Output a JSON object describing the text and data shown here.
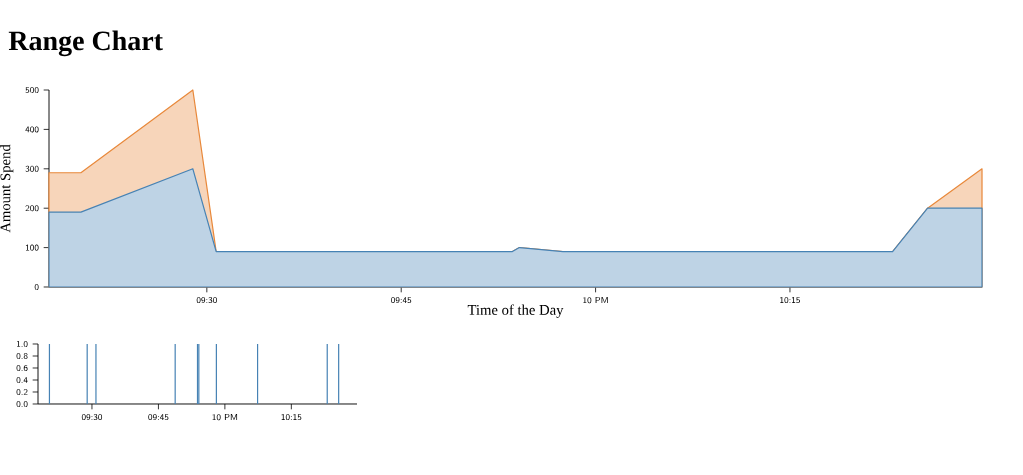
{
  "chart_data": [
    {
      "type": "area",
      "title": "Range Chart",
      "xlabel": "Time of the Day",
      "ylabel": "Amount Spend",
      "x": [
        9.297,
        9.338,
        9.482,
        9.512,
        9.893,
        9.902,
        9.913,
        9.958,
        10.382,
        10.427,
        10.497
      ],
      "series": [
        {
          "color": "#e8883a",
          "values": [
            290,
            290,
            500,
            90,
            90,
            100,
            98,
            90,
            90,
            200,
            300
          ]
        },
        {
          "color": "#4682b4",
          "values": [
            190,
            190,
            300,
            90,
            90,
            100,
            98,
            90,
            90,
            200,
            200
          ]
        }
      ],
      "xlim": [
        9.297,
        10.497
      ],
      "ylim": [
        0,
        500
      ],
      "xticks": [
        {
          "value": 9.5,
          "label": "09:30"
        },
        {
          "value": 9.75,
          "label": "09:45"
        },
        {
          "value": 10,
          "label": "10 PM"
        },
        {
          "value": 10.25,
          "label": "10:15"
        }
      ],
      "yticks": [
        0,
        100,
        200,
        300,
        400,
        500
      ]
    },
    {
      "type": "bar",
      "x": [
        9.34,
        9.482,
        9.515,
        9.813,
        9.897,
        9.902,
        9.968,
        10.123,
        10.385,
        10.428
      ],
      "values": [
        1,
        1,
        1,
        1,
        1,
        1,
        1,
        1,
        1,
        1
      ],
      "color": "#4682b4",
      "xlim": [
        9.297,
        10.497
      ],
      "ylim": [
        0,
        1
      ],
      "xticks": [
        {
          "value": 9.5,
          "label": "09:30"
        },
        {
          "value": 9.75,
          "label": "09:45"
        },
        {
          "value": 10,
          "label": "10 PM"
        },
        {
          "value": 10.25,
          "label": "10:15"
        }
      ],
      "yticks": [
        {
          "value": 0,
          "label": "0.0"
        },
        {
          "value": 0.2,
          "label": "0.2"
        },
        {
          "value": 0.4,
          "label": "0.4"
        },
        {
          "value": 0.6,
          "label": "0.6"
        },
        {
          "value": 0.8,
          "label": "0.8"
        },
        {
          "value": 1,
          "label": "1.0"
        }
      ]
    }
  ]
}
